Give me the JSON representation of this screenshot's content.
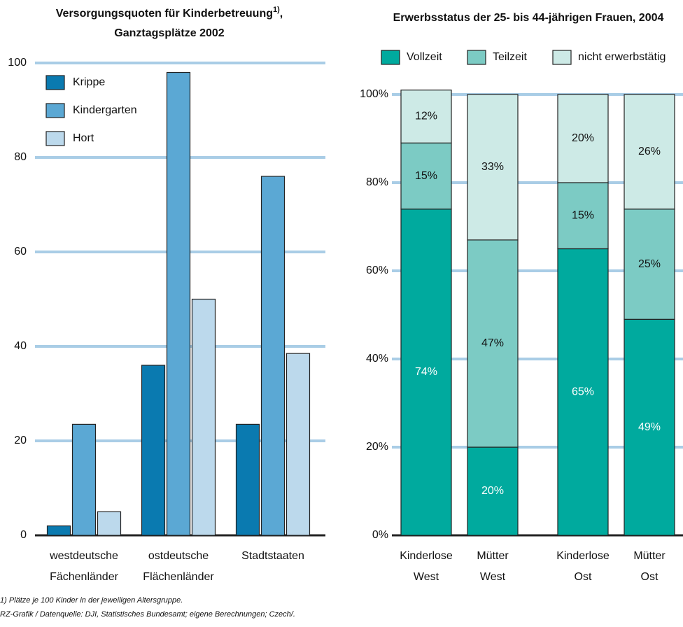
{
  "charts": [
    {
      "type": "bar",
      "title_parts": [
        "Versorgungsquoten für Kinderbetreuung",
        "1)",
        ",",
        "Ganztagsplätze 2002"
      ],
      "categories": [
        [
          "westdeutsche",
          "Fächenländer"
        ],
        [
          "ostdeutsche",
          "Flächenländer"
        ],
        [
          "Stadtstaaten"
        ]
      ],
      "series": [
        {
          "name": "Krippe",
          "color": "#0a7ab0",
          "values": [
            2,
            36,
            23.5
          ]
        },
        {
          "name": "Kindergarten",
          "color": "#5ba8d4",
          "values": [
            23.5,
            98,
            76
          ]
        },
        {
          "name": "Hort",
          "color": "#bcd9ec",
          "values": [
            5,
            50,
            38.5
          ]
        }
      ],
      "ylim": [
        0,
        100
      ],
      "yticks": [
        0,
        20,
        40,
        60,
        80,
        100
      ],
      "grid": true,
      "footnotes": [
        "1) Plätze je 100 Kinder in der jeweiligen Altersgruppe.",
        "RZ-Grafik / Datenquelle: DJI, Statistisches Bundesamt; eigene Berechnungen; Czech/."
      ]
    },
    {
      "type": "stacked_bar",
      "title": "Erwerbsstatus der 25- bis 44-jährigen Frauen, 2004",
      "categories": [
        [
          "Kinderlose",
          "West"
        ],
        [
          "Mütter",
          "West"
        ],
        [
          "Kinderlose",
          "Ost"
        ],
        [
          "Mütter",
          "Ost"
        ]
      ],
      "series": [
        {
          "name": "Vollzeit",
          "color": "#00aa9e",
          "values": [
            74,
            20,
            65,
            49
          ],
          "value_labels": [
            "74%",
            "20%",
            "65%",
            "49%"
          ]
        },
        {
          "name": "Teilzeit",
          "color": "#7ccbc4",
          "values": [
            15,
            47,
            15,
            25
          ],
          "value_labels": [
            "15%",
            "47%",
            "15%",
            "25%"
          ]
        },
        {
          "name": "nicht erwerbstätig",
          "color": "#cdeae6",
          "values": [
            12,
            33,
            20,
            26
          ],
          "value_labels": [
            "12%",
            "33%",
            "20%",
            "26%"
          ]
        }
      ],
      "ylim": [
        0,
        100
      ],
      "yticks": [
        {
          "value": 0,
          "label": "0%"
        },
        {
          "value": 20,
          "label": "20%"
        },
        {
          "value": 40,
          "label": "40%"
        },
        {
          "value": 60,
          "label": "60%"
        },
        {
          "value": 80,
          "label": "80%"
        },
        {
          "value": 100,
          "label": "100%"
        }
      ],
      "grid": true
    }
  ]
}
